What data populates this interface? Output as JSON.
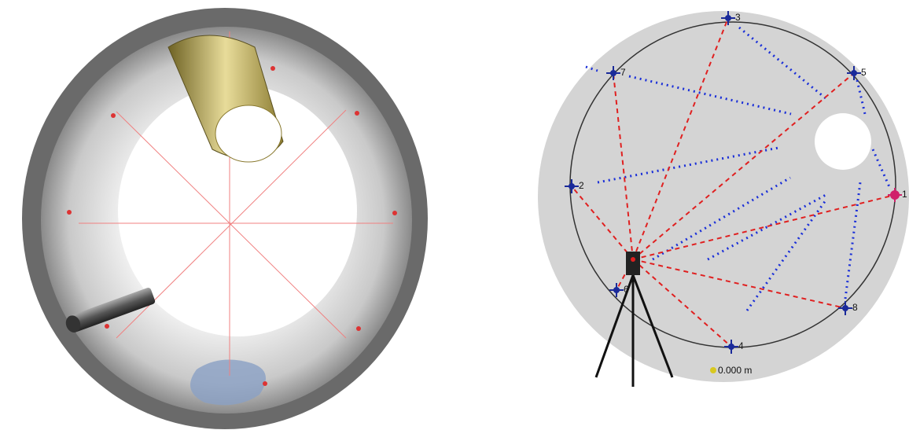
{
  "survey": {
    "points": [
      "1",
      "2",
      "3",
      "4",
      "5",
      "6",
      "7",
      "8"
    ],
    "scale_label": "0.000 m"
  }
}
